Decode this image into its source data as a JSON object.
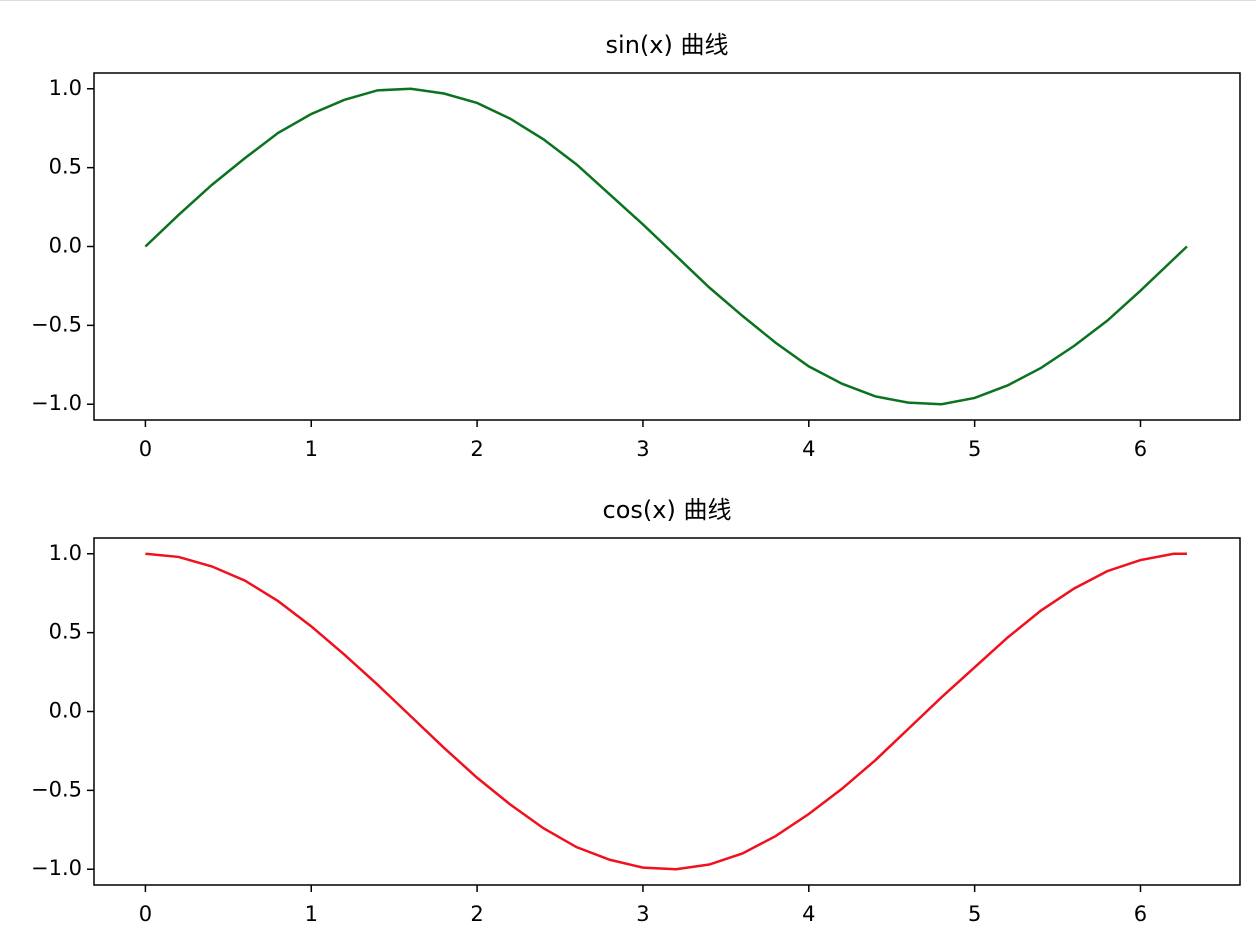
{
  "chart_data": [
    {
      "type": "line",
      "title": "sin(x) 曲线",
      "x": [
        0,
        0.2,
        0.4,
        0.6,
        0.8,
        1.0,
        1.2,
        1.4,
        1.6,
        1.8,
        2.0,
        2.2,
        2.4,
        2.6,
        2.8,
        3.0,
        3.2,
        3.4,
        3.6,
        3.8,
        4.0,
        4.2,
        4.4,
        4.6,
        4.8,
        5.0,
        5.2,
        5.4,
        5.6,
        5.8,
        6.0,
        6.2,
        6.28
      ],
      "series": [
        {
          "color": "#0b7320",
          "values": [
            0,
            0.2,
            0.39,
            0.56,
            0.72,
            0.84,
            0.93,
            0.99,
            1.0,
            0.97,
            0.91,
            0.81,
            0.68,
            0.52,
            0.33,
            0.14,
            -0.06,
            -0.26,
            -0.44,
            -0.61,
            -0.76,
            -0.87,
            -0.95,
            -0.99,
            -1.0,
            -0.96,
            -0.88,
            -0.77,
            -0.63,
            -0.47,
            -0.28,
            -0.08,
            0
          ]
        }
      ],
      "xlim": [
        -0.31,
        6.6
      ],
      "xticks": [
        0,
        1,
        2,
        3,
        4,
        5,
        6
      ],
      "ylim": [
        -1.1,
        1.1
      ],
      "yticks": [
        {
          "value": -1.0,
          "label": "−1.0"
        },
        {
          "value": -0.5,
          "label": "−0.5"
        },
        {
          "value": 0,
          "label": "0.0"
        },
        0.5,
        {
          "value": 1.0,
          "label": "1.0"
        }
      ]
    },
    {
      "type": "line",
      "title": "cos(x) 曲线",
      "x": [
        0,
        0.2,
        0.4,
        0.6,
        0.8,
        1.0,
        1.2,
        1.4,
        1.6,
        1.8,
        2.0,
        2.2,
        2.4,
        2.6,
        2.8,
        3.0,
        3.2,
        3.4,
        3.6,
        3.8,
        4.0,
        4.2,
        4.4,
        4.6,
        4.8,
        5.0,
        5.2,
        5.4,
        5.6,
        5.8,
        6.0,
        6.2,
        6.28
      ],
      "series": [
        {
          "color": "#f0101e",
          "values": [
            1.0,
            0.98,
            0.92,
            0.83,
            0.7,
            0.54,
            0.36,
            0.17,
            -0.03,
            -0.23,
            -0.42,
            -0.59,
            -0.74,
            -0.86,
            -0.94,
            -0.99,
            -1.0,
            -0.97,
            -0.9,
            -0.79,
            -0.65,
            -0.49,
            -0.31,
            -0.11,
            0.09,
            0.28,
            0.47,
            0.64,
            0.78,
            0.89,
            0.96,
            1.0,
            1.0
          ]
        }
      ],
      "xlim": [
        -0.31,
        6.6
      ],
      "xticks": [
        0,
        1,
        2,
        3,
        4,
        5,
        6
      ],
      "ylim": [
        -1.1,
        1.1
      ],
      "yticks": [
        {
          "value": -1.0,
          "label": "−1.0"
        },
        {
          "value": -0.5,
          "label": "−0.5"
        },
        {
          "value": 0,
          "label": "0.0"
        },
        0.5,
        {
          "value": 1.0,
          "label": "1.0"
        }
      ]
    }
  ]
}
